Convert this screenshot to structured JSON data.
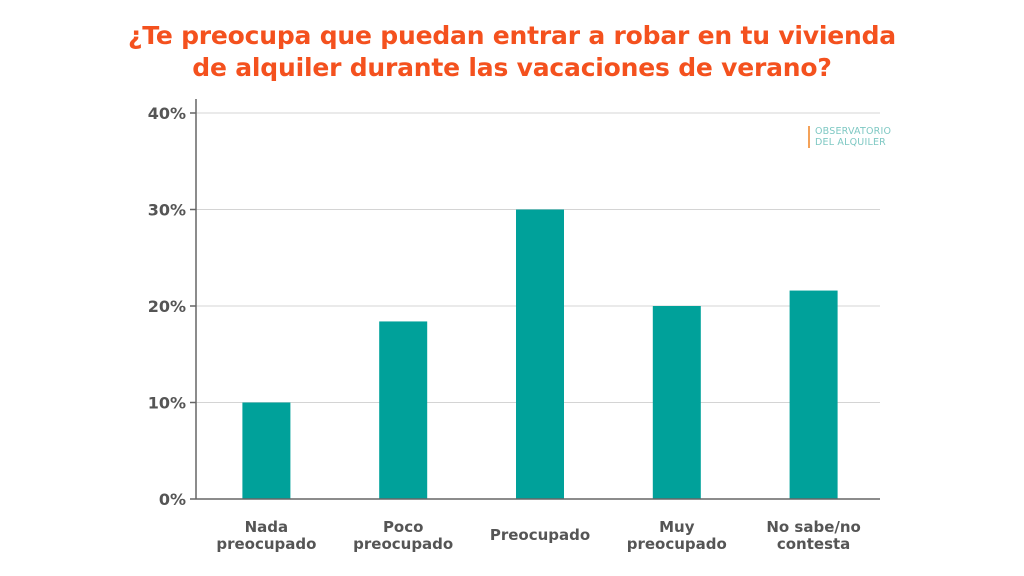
{
  "chart_data": {
    "type": "bar",
    "title_lines": [
      "¿Te preocupa que puedan entrar a robar en tu vivienda",
      "de alquiler durante las vacaciones de verano?"
    ],
    "categories": [
      [
        "Nada",
        "preocupado"
      ],
      [
        "Poco",
        "preocupado"
      ],
      [
        "Preocupado"
      ],
      [
        "Muy",
        "preocupado"
      ],
      [
        "No sabe/no",
        "contesta"
      ]
    ],
    "values": [
      10,
      18.4,
      30,
      20,
      21.6
    ],
    "ylim": [
      0,
      40
    ],
    "yticks": [
      0,
      10,
      20,
      30,
      40
    ],
    "ytick_labels": [
      "0%",
      "10%",
      "20%",
      "30%",
      "40%"
    ],
    "grid": true,
    "bar_color": "#00a19a",
    "title_color": "#f4511e"
  },
  "watermark": {
    "line1": "OBSERVATORIO",
    "line2": "DEL ALQUILER"
  }
}
